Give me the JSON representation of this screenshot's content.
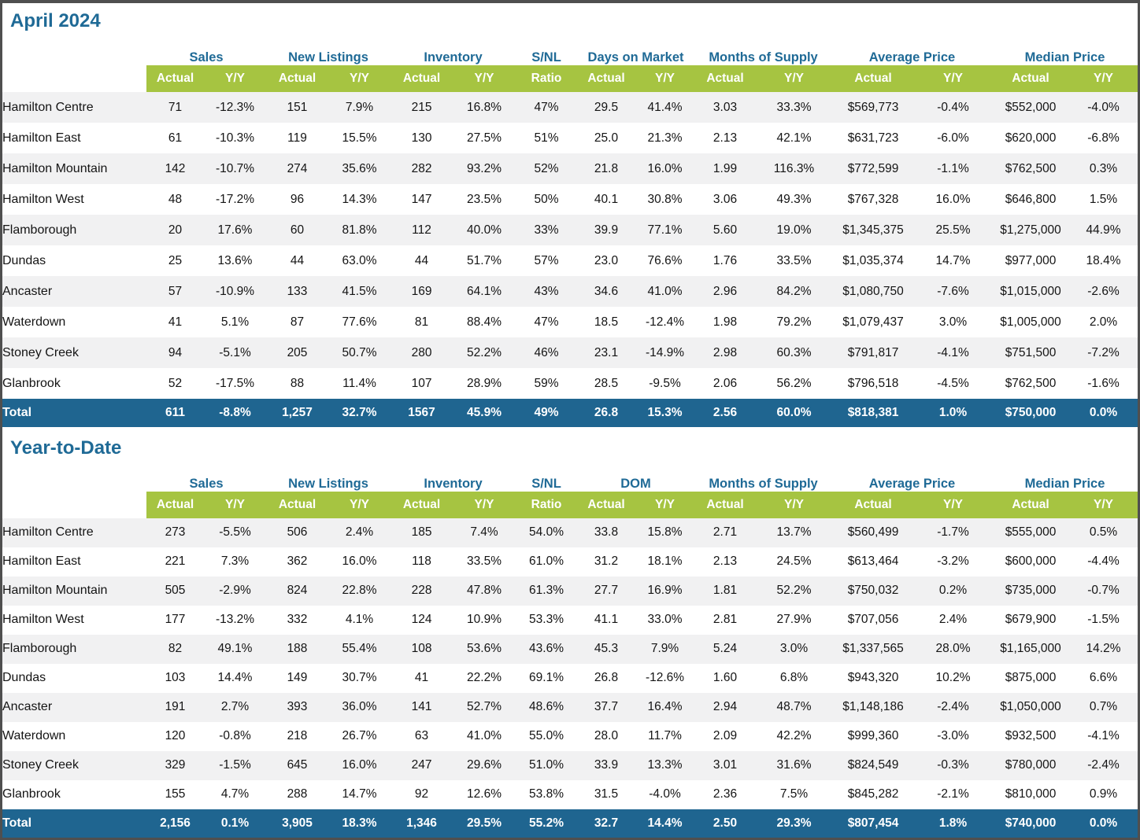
{
  "colors": {
    "accent_blue": "#1F6A96",
    "header_green": "#A6C441",
    "total_row_blue": "#1F6590",
    "stripe_gray": "#F1F1F2"
  },
  "sections": [
    {
      "title": "April 2024",
      "group_headers": [
        {
          "label": "",
          "span": 1
        },
        {
          "label": "Sales",
          "span": 2
        },
        {
          "label": "New Listings",
          "span": 2
        },
        {
          "label": "Inventory",
          "span": 2
        },
        {
          "label": "S/NL",
          "span": 1
        },
        {
          "label": "Days on Market",
          "span": 2
        },
        {
          "label": "Months of Supply",
          "span": 2
        },
        {
          "label": "Average Price",
          "span": 2
        },
        {
          "label": "Median Price",
          "span": 2
        }
      ],
      "sub_headers": [
        "Actual",
        "Y/Y",
        "Actual",
        "Y/Y",
        "Actual",
        "Y/Y",
        "Ratio",
        "Actual",
        "Y/Y",
        "Actual",
        "Y/Y",
        "Actual",
        "Y/Y",
        "Actual",
        "Y/Y"
      ],
      "rows": [
        {
          "label": "Hamilton Centre",
          "values": [
            "71",
            "-12.3%",
            "151",
            "7.9%",
            "215",
            "16.8%",
            "47%",
            "29.5",
            "41.4%",
            "3.03",
            "33.3%",
            "$569,773",
            "-0.4%",
            "$552,000",
            "-4.0%"
          ]
        },
        {
          "label": "Hamilton East",
          "values": [
            "61",
            "-10.3%",
            "119",
            "15.5%",
            "130",
            "27.5%",
            "51%",
            "25.0",
            "21.3%",
            "2.13",
            "42.1%",
            "$631,723",
            "-6.0%",
            "$620,000",
            "-6.8%"
          ]
        },
        {
          "label": "Hamilton Mountain",
          "values": [
            "142",
            "-10.7%",
            "274",
            "35.6%",
            "282",
            "93.2%",
            "52%",
            "21.8",
            "16.0%",
            "1.99",
            "116.3%",
            "$772,599",
            "-1.1%",
            "$762,500",
            "0.3%"
          ]
        },
        {
          "label": "Hamilton West",
          "values": [
            "48",
            "-17.2%",
            "96",
            "14.3%",
            "147",
            "23.5%",
            "50%",
            "40.1",
            "30.8%",
            "3.06",
            "49.3%",
            "$767,328",
            "16.0%",
            "$646,800",
            "1.5%"
          ]
        },
        {
          "label": "Flamborough",
          "values": [
            "20",
            "17.6%",
            "60",
            "81.8%",
            "112",
            "40.0%",
            "33%",
            "39.9",
            "77.1%",
            "5.60",
            "19.0%",
            "$1,345,375",
            "25.5%",
            "$1,275,000",
            "44.9%"
          ]
        },
        {
          "label": "Dundas",
          "values": [
            "25",
            "13.6%",
            "44",
            "63.0%",
            "44",
            "51.7%",
            "57%",
            "23.0",
            "76.6%",
            "1.76",
            "33.5%",
            "$1,035,374",
            "14.7%",
            "$977,000",
            "18.4%"
          ]
        },
        {
          "label": "Ancaster",
          "values": [
            "57",
            "-10.9%",
            "133",
            "41.5%",
            "169",
            "64.1%",
            "43%",
            "34.6",
            "41.0%",
            "2.96",
            "84.2%",
            "$1,080,750",
            "-7.6%",
            "$1,015,000",
            "-2.6%"
          ]
        },
        {
          "label": "Waterdown",
          "values": [
            "41",
            "5.1%",
            "87",
            "77.6%",
            "81",
            "88.4%",
            "47%",
            "18.5",
            "-12.4%",
            "1.98",
            "79.2%",
            "$1,079,437",
            "3.0%",
            "$1,005,000",
            "2.0%"
          ]
        },
        {
          "label": "Stoney Creek",
          "values": [
            "94",
            "-5.1%",
            "205",
            "50.7%",
            "280",
            "52.2%",
            "46%",
            "23.1",
            "-14.9%",
            "2.98",
            "60.3%",
            "$791,817",
            "-4.1%",
            "$751,500",
            "-7.2%"
          ]
        },
        {
          "label": "Glanbrook",
          "values": [
            "52",
            "-17.5%",
            "88",
            "11.4%",
            "107",
            "28.9%",
            "59%",
            "28.5",
            "-9.5%",
            "2.06",
            "56.2%",
            "$796,518",
            "-4.5%",
            "$762,500",
            "-1.6%"
          ]
        }
      ],
      "total": {
        "label": "Total",
        "values": [
          "611",
          "-8.8%",
          "1,257",
          "32.7%",
          "1567",
          "45.9%",
          "49%",
          "26.8",
          "15.3%",
          "2.56",
          "60.0%",
          "$818,381",
          "1.0%",
          "$750,000",
          "0.0%"
        ]
      }
    },
    {
      "title": "Year-to-Date",
      "group_headers": [
        {
          "label": "",
          "span": 1
        },
        {
          "label": "Sales",
          "span": 2
        },
        {
          "label": "New Listings",
          "span": 2
        },
        {
          "label": "Inventory",
          "span": 2
        },
        {
          "label": "S/NL",
          "span": 1
        },
        {
          "label": "DOM",
          "span": 2
        },
        {
          "label": "Months of Supply",
          "span": 2
        },
        {
          "label": "Average Price",
          "span": 2
        },
        {
          "label": "Median Price",
          "span": 2
        }
      ],
      "sub_headers": [
        "Actual",
        "Y/Y",
        "Actual",
        "Y/Y",
        "Actual",
        "Y/Y",
        "Ratio",
        "Actual",
        "Y/Y",
        "Actual",
        "Y/Y",
        "Actual",
        "Y/Y",
        "Actual",
        "Y/Y"
      ],
      "rows": [
        {
          "label": "Hamilton Centre",
          "values": [
            "273",
            "-5.5%",
            "506",
            "2.4%",
            "185",
            "7.4%",
            "54.0%",
            "33.8",
            "15.8%",
            "2.71",
            "13.7%",
            "$560,499",
            "-1.7%",
            "$555,000",
            "0.5%"
          ]
        },
        {
          "label": "Hamilton East",
          "values": [
            "221",
            "7.3%",
            "362",
            "16.0%",
            "118",
            "33.5%",
            "61.0%",
            "31.2",
            "18.1%",
            "2.13",
            "24.5%",
            "$613,464",
            "-3.2%",
            "$600,000",
            "-4.4%"
          ]
        },
        {
          "label": "Hamilton Mountain",
          "values": [
            "505",
            "-2.9%",
            "824",
            "22.8%",
            "228",
            "47.8%",
            "61.3%",
            "27.7",
            "16.9%",
            "1.81",
            "52.2%",
            "$750,032",
            "0.2%",
            "$735,000",
            "-0.7%"
          ]
        },
        {
          "label": "Hamilton West",
          "values": [
            "177",
            "-13.2%",
            "332",
            "4.1%",
            "124",
            "10.9%",
            "53.3%",
            "41.1",
            "33.0%",
            "2.81",
            "27.9%",
            "$707,056",
            "2.4%",
            "$679,900",
            "-1.5%"
          ]
        },
        {
          "label": "Flamborough",
          "values": [
            "82",
            "49.1%",
            "188",
            "55.4%",
            "108",
            "53.6%",
            "43.6%",
            "45.3",
            "7.9%",
            "5.24",
            "3.0%",
            "$1,337,565",
            "28.0%",
            "$1,165,000",
            "14.2%"
          ]
        },
        {
          "label": "Dundas",
          "values": [
            "103",
            "14.4%",
            "149",
            "30.7%",
            "41",
            "22.2%",
            "69.1%",
            "26.8",
            "-12.6%",
            "1.60",
            "6.8%",
            "$943,320",
            "10.2%",
            "$875,000",
            "6.6%"
          ]
        },
        {
          "label": "Ancaster",
          "values": [
            "191",
            "2.7%",
            "393",
            "36.0%",
            "141",
            "52.7%",
            "48.6%",
            "37.7",
            "16.4%",
            "2.94",
            "48.7%",
            "$1,148,186",
            "-2.4%",
            "$1,050,000",
            "0.7%"
          ]
        },
        {
          "label": "Waterdown",
          "values": [
            "120",
            "-0.8%",
            "218",
            "26.7%",
            "63",
            "41.0%",
            "55.0%",
            "28.0",
            "11.7%",
            "2.09",
            "42.2%",
            "$999,360",
            "-3.0%",
            "$932,500",
            "-4.1%"
          ]
        },
        {
          "label": "Stoney Creek",
          "values": [
            "329",
            "-1.5%",
            "645",
            "16.0%",
            "247",
            "29.6%",
            "51.0%",
            "33.9",
            "13.3%",
            "3.01",
            "31.6%",
            "$824,549",
            "-0.3%",
            "$780,000",
            "-2.4%"
          ]
        },
        {
          "label": "Glanbrook",
          "values": [
            "155",
            "4.7%",
            "288",
            "14.7%",
            "92",
            "12.6%",
            "53.8%",
            "31.5",
            "-4.0%",
            "2.36",
            "7.5%",
            "$845,282",
            "-2.1%",
            "$810,000",
            "0.9%"
          ]
        }
      ],
      "total": {
        "label": "Total",
        "values": [
          "2,156",
          "0.1%",
          "3,905",
          "18.3%",
          "1,346",
          "29.5%",
          "55.2%",
          "32.7",
          "14.4%",
          "2.50",
          "29.3%",
          "$807,454",
          "1.8%",
          "$740,000",
          "0.0%"
        ]
      }
    }
  ]
}
